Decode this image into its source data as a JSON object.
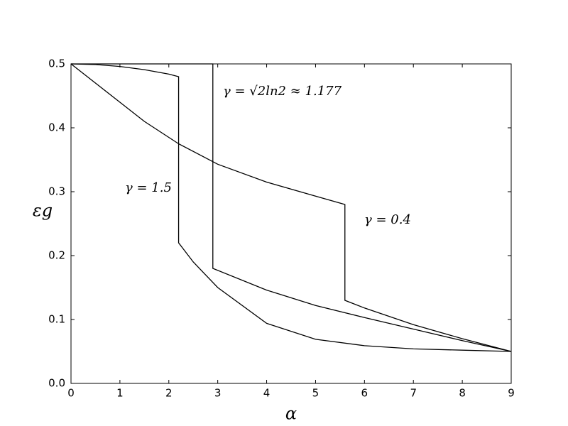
{
  "chart_data": {
    "type": "line",
    "xlabel": "α",
    "ylabel": "εg",
    "xlim": [
      0,
      9
    ],
    "xticks": [
      0,
      1,
      2,
      3,
      4,
      5,
      6,
      7,
      8,
      9
    ],
    "ylim": [
      0,
      0.5
    ],
    "yticks": [
      {
        "value": 0,
        "label": "0.0"
      },
      0.1,
      0.2,
      0.3,
      0.4,
      0.5
    ],
    "color": "#000000",
    "series": [
      {
        "name": "γ = 1.5",
        "x": [
          0,
          0.5,
          1,
          1.5,
          2,
          2.2,
          2.2,
          2.5,
          3,
          4,
          5,
          6,
          7,
          8,
          9
        ],
        "values": [
          0.5,
          0.499,
          0.496,
          0.491,
          0.484,
          0.48,
          0.22,
          0.19,
          0.15,
          0.094,
          0.069,
          0.059,
          0.054,
          0.052,
          0.05
        ]
      },
      {
        "name": "γ = √2ln2 ≈ 1.177",
        "x": [
          0,
          2.9,
          2.9,
          4,
          5,
          6,
          7,
          8,
          9
        ],
        "values": [
          0.5,
          0.5,
          0.18,
          0.146,
          0.122,
          0.103,
          0.085,
          0.067,
          0.05
        ]
      },
      {
        "name": "γ = 0.4",
        "x": [
          0,
          0.5,
          1,
          1.5,
          2,
          2.2,
          2.9,
          3,
          4,
          5,
          5.6,
          5.6,
          6,
          7,
          8,
          9
        ],
        "values": [
          0.5,
          0.47,
          0.44,
          0.41,
          0.385,
          0.375,
          0.347,
          0.343,
          0.315,
          0.293,
          0.28,
          0.13,
          0.118,
          0.092,
          0.07,
          0.05
        ]
      }
    ]
  }
}
